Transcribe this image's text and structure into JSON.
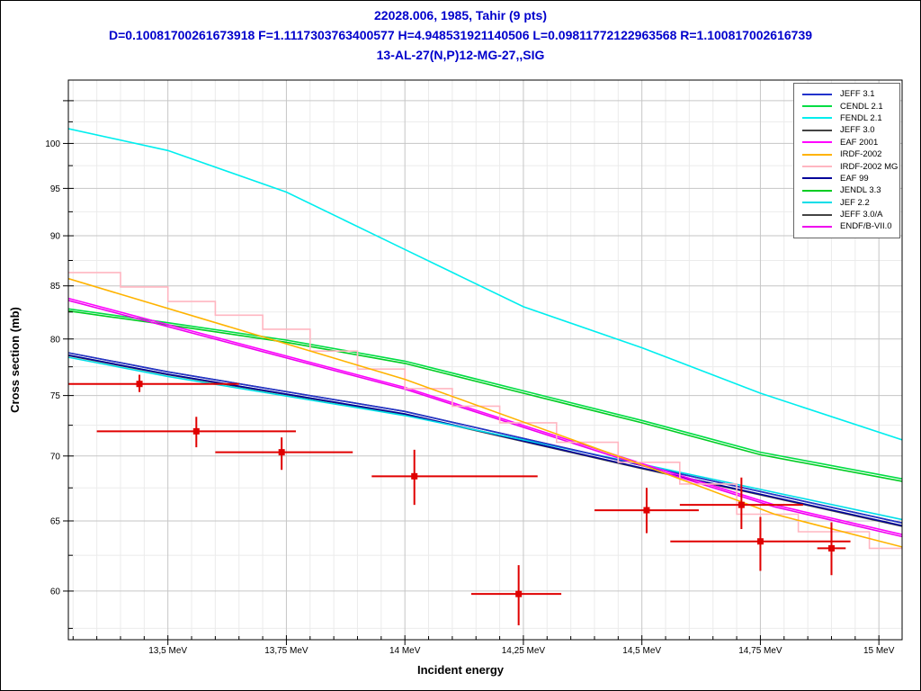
{
  "colors": {
    "header_text": "#0000CC",
    "experimental": "#E00000",
    "grid_major": "#c6c6c6",
    "grid_minor": "#ebebeb",
    "axis": "#000000",
    "legend_border": "#666666"
  },
  "chart_data": {
    "type": "line",
    "title_lines": [
      "22028.006, 1985, Tahir (9 pts)",
      "D=0.10081700261673918 F=1.1117303763400577 H=4.948531921140506 L=0.09811772122963568 R=1.100817002616739",
      "13-AL-27(N,P)12-MG-27,,SIG"
    ],
    "xlabel": "Incident energy",
    "ylabel": "Cross section (mb)",
    "x_unit": "MeV",
    "xlim": [
      13.29,
      15.049
    ],
    "ylim": [
      56.76,
      107.5
    ],
    "y_scale": "log",
    "grid": true,
    "legend_position": "top-right",
    "x_major_ticks": [
      13.5,
      13.75,
      14.0,
      14.25,
      14.5,
      14.75,
      15.0
    ],
    "x_tick_labels": [
      "13,5 MeV",
      "13,75 MeV",
      "14 MeV",
      "14,25 MeV",
      "14,5 MeV",
      "14,75 MeV",
      "15 MeV"
    ],
    "x_minor_step": 0.05,
    "y_major_ticks": [
      60,
      65,
      70,
      75,
      80,
      85,
      90,
      95,
      100,
      105
    ],
    "y_labeled_ticks": [
      60,
      65,
      70,
      75,
      80,
      85,
      90,
      95,
      100
    ],
    "y_minor_step": 2.5,
    "series": [
      {
        "name": "JEFF 3.0",
        "color": "#444444",
        "points": [
          [
            13.29,
            78.75
          ],
          [
            13.5,
            77.05
          ],
          [
            14.0,
            73.65
          ],
          [
            14.5,
            69.25
          ],
          [
            15.049,
            64.85
          ]
        ]
      },
      {
        "name": "JEFF 3.0/A",
        "color": "#444444",
        "points": [
          [
            13.29,
            78.5
          ],
          [
            13.5,
            76.8
          ],
          [
            14.0,
            73.4
          ],
          [
            14.5,
            69.0
          ],
          [
            15.049,
            64.6
          ]
        ]
      },
      {
        "name": "JENDL 3.3",
        "color": "#00CC22",
        "points": [
          [
            13.29,
            82.6
          ],
          [
            13.5,
            81.3
          ],
          [
            13.75,
            79.7
          ],
          [
            14.0,
            77.8
          ],
          [
            14.25,
            75.2
          ],
          [
            14.5,
            72.7
          ],
          [
            14.75,
            70.1
          ],
          [
            15.049,
            68.0
          ]
        ]
      },
      {
        "name": "CENDL 2.1",
        "color": "#00DD44",
        "points": [
          [
            13.29,
            82.8
          ],
          [
            13.5,
            81.5
          ],
          [
            13.75,
            79.9
          ],
          [
            14.0,
            78.0
          ],
          [
            14.25,
            75.4
          ],
          [
            14.5,
            72.9
          ],
          [
            14.75,
            70.3
          ],
          [
            15.049,
            68.2
          ]
        ]
      },
      {
        "name": "EAF 99",
        "color": "#000099",
        "points": [
          [
            13.29,
            78.55
          ],
          [
            13.5,
            76.85
          ],
          [
            14.0,
            73.45
          ],
          [
            14.5,
            69.05
          ],
          [
            15.049,
            64.65
          ]
        ]
      },
      {
        "name": "JEF 2.2",
        "color": "#00DDE8",
        "points": [
          [
            13.29,
            78.35
          ],
          [
            13.5,
            76.65
          ],
          [
            14.0,
            73.3
          ],
          [
            14.5,
            69.35
          ],
          [
            15.049,
            65.1
          ]
        ]
      },
      {
        "name": "JEFF 3.1",
        "color": "#2233CC",
        "points": [
          [
            13.29,
            78.75
          ],
          [
            13.5,
            77.05
          ],
          [
            14.0,
            73.65
          ],
          [
            14.5,
            69.25
          ],
          [
            15.049,
            64.85
          ]
        ]
      },
      {
        "name": "FENDL 2.1",
        "color": "#00EEEE",
        "points": [
          [
            13.29,
            101.7
          ],
          [
            13.5,
            99.2
          ],
          [
            13.75,
            94.6
          ],
          [
            14.0,
            88.6
          ],
          [
            14.25,
            83.0
          ],
          [
            14.5,
            79.2
          ],
          [
            14.75,
            75.2
          ],
          [
            15.049,
            71.3
          ]
        ]
      },
      {
        "name": "ENDF/B-VII.0",
        "color": "#EE00EE",
        "points": [
          [
            13.29,
            83.6
          ],
          [
            14.0,
            75.55
          ],
          [
            14.5,
            69.25
          ],
          [
            14.78,
            66.05
          ],
          [
            15.049,
            63.85
          ]
        ]
      },
      {
        "name": "EAF 2001",
        "color": "#FF00FF",
        "points": [
          [
            13.29,
            83.8
          ],
          [
            14.0,
            75.7
          ],
          [
            14.5,
            69.4
          ],
          [
            14.78,
            66.2
          ],
          [
            15.049,
            64.0
          ]
        ]
      },
      {
        "name": "IRDF-2002 MG",
        "color": "#FFB6C1",
        "style": "staircase",
        "steps": [
          [
            13.29,
            13.4,
            86.3
          ],
          [
            13.4,
            13.5,
            84.9
          ],
          [
            13.5,
            13.6,
            83.5
          ],
          [
            13.6,
            13.7,
            82.2
          ],
          [
            13.7,
            13.8,
            80.9
          ],
          [
            13.8,
            13.9,
            78.9
          ],
          [
            13.9,
            14.0,
            77.3
          ],
          [
            14.0,
            14.1,
            75.6
          ],
          [
            14.1,
            14.2,
            74.1
          ],
          [
            14.2,
            14.32,
            72.7
          ],
          [
            14.32,
            14.45,
            71.1
          ],
          [
            14.45,
            14.58,
            69.5
          ],
          [
            14.58,
            14.7,
            67.8
          ],
          [
            14.7,
            14.83,
            65.5
          ],
          [
            14.83,
            14.98,
            64.2
          ],
          [
            14.98,
            15.049,
            63.0
          ]
        ]
      },
      {
        "name": "IRDF-2002",
        "color": "#FFB300",
        "points": [
          [
            13.29,
            85.7
          ],
          [
            14.0,
            76.4
          ],
          [
            14.5,
            69.3
          ],
          [
            14.78,
            65.5
          ],
          [
            15.049,
            63.1
          ]
        ]
      },
      {
        "name": "Tahir 1985 experimental",
        "color": "#E00000",
        "style": "experimental",
        "points_err": [
          {
            "x": 13.44,
            "y": 76.0,
            "x1": 13.29,
            "x2": 13.65,
            "y1": 75.3,
            "y2": 76.8
          },
          {
            "x": 13.56,
            "y": 72.0,
            "x1": 13.35,
            "x2": 13.77,
            "y1": 70.7,
            "y2": 73.2
          },
          {
            "x": 13.74,
            "y": 70.3,
            "x1": 13.6,
            "x2": 13.89,
            "y1": 68.9,
            "y2": 71.5
          },
          {
            "x": 14.02,
            "y": 68.4,
            "x1": 13.93,
            "x2": 14.28,
            "y1": 66.2,
            "y2": 70.5
          },
          {
            "x": 14.24,
            "y": 59.8,
            "x1": 14.14,
            "x2": 14.33,
            "y1": 57.7,
            "y2": 61.8
          },
          {
            "x": 14.51,
            "y": 65.8,
            "x1": 14.4,
            "x2": 14.62,
            "y1": 64.1,
            "y2": 67.5
          },
          {
            "x": 14.71,
            "y": 66.2,
            "x1": 14.58,
            "x2": 14.84,
            "y1": 64.4,
            "y2": 68.3
          },
          {
            "x": 14.75,
            "y": 63.5,
            "x1": 14.56,
            "x2": 14.94,
            "y1": 61.4,
            "y2": 65.3
          },
          {
            "x": 14.9,
            "y": 63.0,
            "x1": 14.87,
            "x2": 14.93,
            "y1": 61.1,
            "y2": 64.9
          }
        ]
      }
    ]
  },
  "legend": {
    "entries": [
      {
        "label": "JEFF 3.1",
        "color": "#2233CC"
      },
      {
        "label": "CENDL 2.1",
        "color": "#00DD44"
      },
      {
        "label": "FENDL 2.1",
        "color": "#00EEEE"
      },
      {
        "label": "JEFF 3.0",
        "color": "#444444"
      },
      {
        "label": "EAF 2001",
        "color": "#FF00FF"
      },
      {
        "label": "IRDF-2002",
        "color": "#FFB300"
      },
      {
        "label": "IRDF-2002 MG",
        "color": "#FFB6C1"
      },
      {
        "label": "EAF 99",
        "color": "#000099"
      },
      {
        "label": "JENDL 3.3",
        "color": "#00CC22"
      },
      {
        "label": "JEF 2.2",
        "color": "#00DDE8"
      },
      {
        "label": "JEFF 3.0/A",
        "color": "#444444"
      },
      {
        "label": "ENDF/B-VII.0",
        "color": "#EE00EE"
      }
    ]
  }
}
